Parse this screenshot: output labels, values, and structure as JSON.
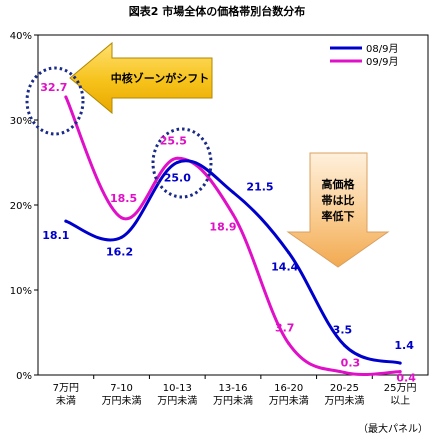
{
  "chart_data": {
    "type": "line",
    "title": "図表2 市場全体の価格帯別台数分布",
    "categories": [
      [
        "7万円",
        "未満"
      ],
      [
        "7-10",
        "万円未満"
      ],
      [
        "10-13",
        "万円未満"
      ],
      [
        "13-16",
        "万円未満"
      ],
      [
        "16-20",
        "万円未満"
      ],
      [
        "20-25",
        "万円未満"
      ],
      [
        "25万円",
        "以上"
      ]
    ],
    "yticks": [
      "0%",
      "10%",
      "20%",
      "30%",
      "40%"
    ],
    "ylim": [
      0,
      40
    ],
    "series": [
      {
        "name": "08/9月",
        "color": "#0000cc",
        "values": [
          18.1,
          16.2,
          25.0,
          21.5,
          14.4,
          3.5,
          1.4
        ],
        "labels": [
          "18.1",
          "16.2",
          "25.0",
          "21.5",
          "14.4",
          "3.5",
          "1.4"
        ]
      },
      {
        "name": "09/9月",
        "color": "#e010c8",
        "values": [
          32.7,
          18.5,
          25.5,
          18.9,
          3.7,
          0.3,
          0.4
        ],
        "labels": [
          "32.7",
          "18.5",
          "25.5",
          "18.9",
          "3.7",
          "0.3",
          "0.4"
        ]
      }
    ],
    "annotations": {
      "left_arrow": "中核ゾーンがシフト",
      "down_arrow": [
        "高価格",
        "帯は比",
        "率低下"
      ]
    },
    "note": "（最大パネル）",
    "legend_position": "top-right",
    "grid": false
  }
}
